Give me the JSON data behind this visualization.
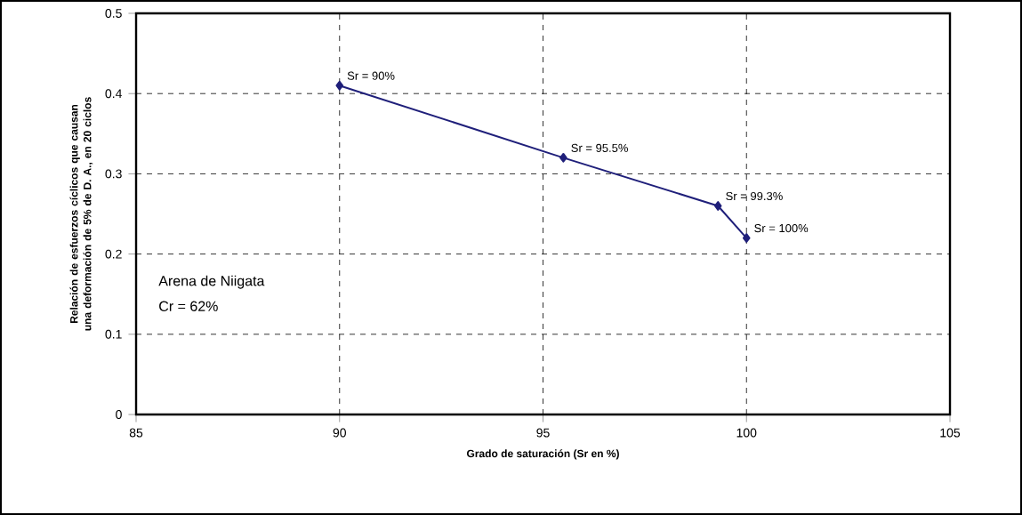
{
  "chart_data": {
    "type": "line",
    "xlabel": "Grado de saturación (Sr en %)",
    "ylabel": "Relación de esfuerzos cíclicos que causan una deformación de 5% de D. A., en 20 ciclos",
    "x": [
      90,
      95.5,
      99.3,
      100
    ],
    "series": [
      {
        "color": "#1f1f7a",
        "values": [
          0.41,
          0.32,
          0.26,
          0.22
        ]
      }
    ],
    "xlim": [
      85,
      105
    ],
    "xticks": [
      85,
      90,
      95,
      100,
      105
    ],
    "ylim": [
      0,
      0.5
    ],
    "yticks": [
      0,
      0.1,
      0.2,
      0.3,
      0.4,
      0.5
    ],
    "grid": true,
    "marker": "diamond",
    "line_style": "solid",
    "annotations": [
      {
        "text": "Sr = 90%",
        "x": 90,
        "y": 0.41
      },
      {
        "text": "Sr = 95.5%",
        "x": 95.5,
        "y": 0.32
      },
      {
        "text": "Sr = 99.3%",
        "x": 99.3,
        "y": 0.26
      },
      {
        "text": "Sr = 100%",
        "x": 100,
        "y": 0.22
      },
      "Arena de Niigata",
      "Cr = 62%"
    ]
  }
}
